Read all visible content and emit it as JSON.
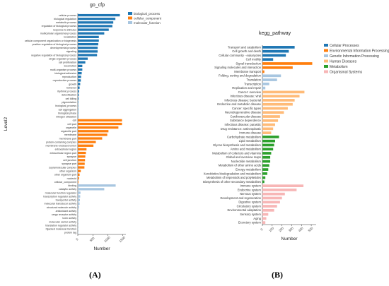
{
  "colors": {
    "go": {
      "biological_process": "#1f77b4",
      "cellular_component": "#ff7f0e",
      "molecular_function": "#a8c6e0"
    },
    "kegg": {
      "Cellular Processes": "#1f77b4",
      "Environmental Information Processing": "#ff7f0e",
      "Genetic Information Processing": "#a8c6e0",
      "Human Diseases": "#ffbb78",
      "Metabolism": "#2ca02c",
      "Organismal Systems": "#f7b6b6"
    }
  },
  "panels": {
    "a_label": "(A)",
    "b_label": "(B)"
  },
  "chart_data": [
    {
      "type": "bar",
      "orientation": "horizontal",
      "title": "go_cfp",
      "xlabel": "Number",
      "ylabel": "Level2",
      "xlim": [
        0,
        1600
      ],
      "xticks": [
        0,
        500,
        1000,
        1500
      ],
      "legend": {
        "position": "top-right",
        "entries": [
          "biological_process",
          "cellular_component",
          "molecular_function"
        ]
      },
      "grid": false,
      "categories": [
        "cellular process",
        "biological regulation",
        "metabolic process",
        "regulation of biological process",
        "response to stimulus",
        "multicellular organismal process",
        "localization",
        "cellular component organization or biogenesis",
        "positive regulation of biological process",
        "developmental process",
        "signaling",
        "negative regulation of biological process",
        "single-organism process",
        "cell proliferation",
        "locomotion",
        "multi-organism process",
        "biological adhesion",
        "reproduction",
        "reproductive process",
        "growth",
        "behavior",
        "rhythmic process",
        "detoxification",
        "cell killing",
        "pigmentation",
        "biological_process",
        "cell aggregation",
        "biological phase",
        "nitrogen utilization",
        "cell",
        "cell part",
        "organelle",
        "organelle part",
        "membrane",
        "membrane part",
        "protein-containing complex",
        "membrane-enclosed lumen",
        "extracellular region",
        "extracellular region part",
        "synapse",
        "cell junction",
        "synapse part",
        "supramolecular complex",
        "other organism",
        "other organism part",
        "nucleoid",
        "cellular_component",
        "binding",
        "catalytic activity",
        "molecular function regulator",
        "transcription regulator activity",
        "transporter activity",
        "molecular transducer activity",
        "structural molecule activity",
        "antioxidant activity",
        "cargo receptor activity",
        "toxin activity",
        "molecular carrier activity",
        "translation regulator activity",
        "hijacked molecular function",
        "protein tag"
      ],
      "groups": [
        "biological_process",
        "biological_process",
        "biological_process",
        "biological_process",
        "biological_process",
        "biological_process",
        "biological_process",
        "biological_process",
        "biological_process",
        "biological_process",
        "biological_process",
        "biological_process",
        "biological_process",
        "biological_process",
        "biological_process",
        "biological_process",
        "biological_process",
        "biological_process",
        "biological_process",
        "biological_process",
        "biological_process",
        "biological_process",
        "biological_process",
        "biological_process",
        "biological_process",
        "biological_process",
        "biological_process",
        "biological_process",
        "biological_process",
        "cellular_component",
        "cellular_component",
        "cellular_component",
        "cellular_component",
        "cellular_component",
        "cellular_component",
        "cellular_component",
        "cellular_component",
        "cellular_component",
        "cellular_component",
        "cellular_component",
        "cellular_component",
        "cellular_component",
        "cellular_component",
        "cellular_component",
        "cellular_component",
        "cellular_component",
        "cellular_component",
        "molecular_function",
        "molecular_function",
        "molecular_function",
        "molecular_function",
        "molecular_function",
        "molecular_function",
        "molecular_function",
        "molecular_function",
        "molecular_function",
        "molecular_function",
        "molecular_function",
        "molecular_function",
        "molecular_function",
        "protein tag"
      ],
      "values": [
        1400,
        1250,
        1180,
        1150,
        1030,
        880,
        700,
        700,
        680,
        660,
        660,
        640,
        330,
        250,
        150,
        150,
        130,
        110,
        100,
        80,
        60,
        40,
        30,
        25,
        15,
        10,
        5,
        5,
        5,
        1470,
        1470,
        1350,
        1020,
        980,
        810,
        600,
        520,
        290,
        270,
        250,
        240,
        230,
        220,
        100,
        60,
        40,
        20,
        1260,
        880,
        90,
        80,
        70,
        60,
        40,
        20,
        15,
        10,
        8,
        5,
        4,
        3
      ],
      "groups_note": ""
    },
    {
      "type": "bar",
      "orientation": "horizontal",
      "title": "kegg_pathway",
      "xlabel": "Number",
      "ylabel": "Level2",
      "xlim": [
        0,
        550
      ],
      "xticks": [
        0,
        100,
        200,
        300,
        400,
        500
      ],
      "legend": {
        "position": "top-right",
        "entries": [
          "Cellular Processes",
          "Environmental Information Processing",
          "Genetic Information Processing",
          "Human Diseases",
          "Metabolism",
          "Organismal Systems"
        ]
      },
      "grid": false,
      "categories": [
        "Transport and catabolism",
        "Cell growth and death",
        "Cellular community - eukaryotes",
        "Cell motility",
        "Signal transduction",
        "Signaling molecules and interaction",
        "Membrane transport",
        "Folding, sorting and degradation",
        "Translation",
        "Transcription",
        "Replication and repair",
        "Cancer: overview",
        "Infectious disease: viral",
        "Infectious disease: bacterial",
        "Endocrine and metabolic disease",
        "Cancer: specific types",
        "Neurodegenerative disease",
        "Cardiovascular disease",
        "Substance dependence",
        "Infectious disease: parasitic",
        "Drug resistance: antineoplastic",
        "Immune disease",
        "Carbohydrate metabolism",
        "Lipid metabolism",
        "Glycan biosynthesis and metabolism",
        "Amino acid metabolism",
        "Metabolism of cofactors and vitamins",
        "Global and overview maps",
        "Nucleotide metabolism",
        "Metabolism of other amino acids",
        "Energy metabolism",
        "Xenobiotics biodegradation and metabolism",
        "Metabolism of terpenoids and polyketides",
        "Biosynthesis of other secondary metabolites",
        "Immune system",
        "Endocrine system",
        "Nervous system",
        "Development and regeneration",
        "Digestive system",
        "Circulatory system",
        "Environmental adaptation",
        "Sensory system",
        "Aging",
        "Excretory system"
      ],
      "groups": [
        "Cellular Processes",
        "Cellular Processes",
        "Cellular Processes",
        "Cellular Processes",
        "Environmental Information Processing",
        "Environmental Information Processing",
        "Environmental Information Processing",
        "Genetic Information Processing",
        "Genetic Information Processing",
        "Genetic Information Processing",
        "Genetic Information Processing",
        "Human Diseases",
        "Human Diseases",
        "Human Diseases",
        "Human Diseases",
        "Human Diseases",
        "Human Diseases",
        "Human Diseases",
        "Human Diseases",
        "Human Diseases",
        "Human Diseases",
        "Human Diseases",
        "Metabolism",
        "Metabolism",
        "Metabolism",
        "Metabolism",
        "Metabolism",
        "Metabolism",
        "Metabolism",
        "Metabolism",
        "Metabolism",
        "Metabolism",
        "Metabolism",
        "Metabolism",
        "Organismal Systems",
        "Organismal Systems",
        "Organismal Systems",
        "Organismal Systems",
        "Organismal Systems",
        "Organismal Systems",
        "Organismal Systems",
        "Organismal Systems",
        "Organismal Systems",
        "Organismal Systems"
      ],
      "values": [
        330,
        270,
        240,
        110,
        510,
        310,
        20,
        190,
        150,
        70,
        30,
        430,
        380,
        330,
        310,
        260,
        220,
        180,
        160,
        130,
        110,
        90,
        170,
        130,
        120,
        110,
        90,
        80,
        80,
        70,
        60,
        50,
        30,
        20,
        420,
        350,
        230,
        200,
        180,
        150,
        120,
        60,
        40,
        30
      ]
    }
  ]
}
